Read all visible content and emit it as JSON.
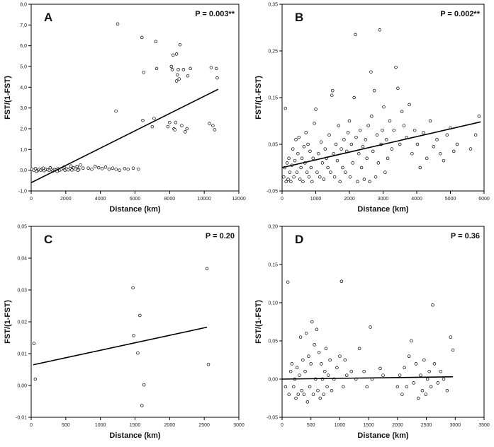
{
  "chart_data": [
    {
      "type": "scatter",
      "panel_letter": "A",
      "p_value": "P = 0.003**",
      "xlabel": "Distance (km)",
      "ylabel": "FST/(1-FST)",
      "xlim": [
        0,
        12000
      ],
      "ylim": [
        -1.0,
        8.0
      ],
      "xticks": [
        "0",
        "2000",
        "4000",
        "6000",
        "8000",
        "10000",
        "12000"
      ],
      "yticks": [
        "-1,0",
        "0,0",
        "1,0",
        "2,0",
        "3,0",
        "4,0",
        "5,0",
        "6,0",
        "7,0",
        "8,0"
      ],
      "regression": [
        [
          0,
          -0.6
        ],
        [
          10800,
          3.9
        ]
      ],
      "points": [
        [
          50,
          0.05
        ],
        [
          150,
          0.0
        ],
        [
          250,
          0.08
        ],
        [
          350,
          -0.03
        ],
        [
          450,
          0.05
        ],
        [
          550,
          0.0
        ],
        [
          650,
          0.07
        ],
        [
          750,
          -0.02
        ],
        [
          850,
          0.04
        ],
        [
          950,
          0.02
        ],
        [
          1050,
          0.0
        ],
        [
          1150,
          0.06
        ],
        [
          1250,
          -0.04
        ],
        [
          1350,
          0.03
        ],
        [
          1450,
          0.01
        ],
        [
          1550,
          0.07
        ],
        [
          1650,
          0.0
        ],
        [
          1750,
          0.05
        ],
        [
          1850,
          0.1
        ],
        [
          1950,
          0.0
        ],
        [
          2050,
          0.06
        ],
        [
          2150,
          0.02
        ],
        [
          2250,
          0.09
        ],
        [
          2350,
          0.01
        ],
        [
          2450,
          0.12
        ],
        [
          2550,
          0.05
        ],
        [
          2650,
          0.18
        ],
        [
          2750,
          0.04
        ],
        [
          2850,
          0.25
        ],
        [
          3000,
          0.1
        ],
        [
          300,
          -0.05
        ],
        [
          700,
          0.1
        ],
        [
          1100,
          0.12
        ],
        [
          1500,
          -0.06
        ],
        [
          1900,
          0.15
        ],
        [
          2300,
          0.2
        ],
        [
          2700,
          0.0
        ],
        [
          3300,
          0.1
        ],
        [
          3500,
          0.05
        ],
        [
          3700,
          0.18
        ],
        [
          3900,
          0.12
        ],
        [
          4100,
          0.08
        ],
        [
          4300,
          0.15
        ],
        [
          4500,
          0.05
        ],
        [
          4700,
          0.1
        ],
        [
          4900,
          0.05
        ],
        [
          5100,
          0.0
        ],
        [
          5400,
          0.08
        ],
        [
          5600,
          0.05
        ],
        [
          5900,
          0.1
        ],
        [
          6200,
          0.05
        ],
        [
          4900,
          2.85
        ],
        [
          5000,
          7.05
        ],
        [
          6400,
          6.4
        ],
        [
          6500,
          4.72
        ],
        [
          6450,
          2.4
        ],
        [
          7000,
          2.1
        ],
        [
          7100,
          2.5
        ],
        [
          7200,
          6.2
        ],
        [
          7250,
          4.9
        ],
        [
          7900,
          2.1
        ],
        [
          8000,
          2.3
        ],
        [
          8100,
          5.0
        ],
        [
          8150,
          4.85
        ],
        [
          8200,
          5.55
        ],
        [
          8250,
          2.0
        ],
        [
          8300,
          1.95
        ],
        [
          8350,
          2.3
        ],
        [
          8400,
          4.3
        ],
        [
          8400,
          5.6
        ],
        [
          8450,
          4.6
        ],
        [
          8500,
          4.85
        ],
        [
          8550,
          4.4
        ],
        [
          8600,
          6.05
        ],
        [
          8700,
          2.15
        ],
        [
          8800,
          4.85
        ],
        [
          8900,
          1.85
        ],
        [
          9000,
          2.0
        ],
        [
          9050,
          4.55
        ],
        [
          9200,
          4.9
        ],
        [
          10300,
          2.25
        ],
        [
          10400,
          4.95
        ],
        [
          10500,
          2.15
        ],
        [
          10600,
          1.95
        ],
        [
          10700,
          4.9
        ],
        [
          10750,
          4.45
        ]
      ]
    },
    {
      "type": "scatter",
      "panel_letter": "B",
      "p_value": "P = 0.002**",
      "xlabel": "Distance (km)",
      "ylabel": "FST/(1-FST)",
      "xlim": [
        0,
        6000
      ],
      "ylim": [
        -0.05,
        0.35
      ],
      "xticks": [
        "0",
        "1000",
        "2000",
        "3000",
        "4000",
        "5000",
        "6000"
      ],
      "yticks": [
        "-0,05",
        "0,05",
        "0,15",
        "0,25",
        "0,35"
      ],
      "regression": [
        [
          0,
          0.0
        ],
        [
          5900,
          0.098
        ]
      ],
      "points": [
        [
          50,
          -0.02
        ],
        [
          80,
          0.0
        ],
        [
          100,
          0.127
        ],
        [
          120,
          -0.03
        ],
        [
          150,
          0.01
        ],
        [
          180,
          -0.025
        ],
        [
          200,
          0.02
        ],
        [
          230,
          -0.01
        ],
        [
          260,
          -0.03
        ],
        [
          290,
          0.005
        ],
        [
          320,
          0.04
        ],
        [
          350,
          -0.02
        ],
        [
          380,
          0.015
        ],
        [
          410,
          0.06
        ],
        [
          440,
          -0.01
        ],
        [
          470,
          0.03
        ],
        [
          500,
          0.065
        ],
        [
          530,
          -0.025
        ],
        [
          560,
          0.0
        ],
        [
          590,
          0.02
        ],
        [
          620,
          -0.03
        ],
        [
          650,
          0.045
        ],
        [
          680,
          0.01
        ],
        [
          710,
          0.075
        ],
        [
          740,
          -0.01
        ],
        [
          770,
          0.05
        ],
        [
          800,
          -0.02
        ],
        [
          830,
          0.035
        ],
        [
          860,
          0.0
        ],
        [
          890,
          -0.03
        ],
        [
          920,
          0.02
        ],
        [
          960,
          0.095
        ],
        [
          1000,
          0.125
        ],
        [
          1040,
          -0.01
        ],
        [
          1080,
          0.03
        ],
        [
          1120,
          -0.02
        ],
        [
          1160,
          0.055
        ],
        [
          1200,
          0.01
        ],
        [
          1240,
          -0.025
        ],
        [
          1280,
          0.04
        ],
        [
          1320,
          0.02
        ],
        [
          1360,
          0.0
        ],
        [
          1400,
          0.07
        ],
        [
          1440,
          -0.01
        ],
        [
          1480,
          0.155
        ],
        [
          1500,
          0.165
        ],
        [
          1530,
          0.03
        ],
        [
          1560,
          -0.02
        ],
        [
          1600,
          0.05
        ],
        [
          1640,
          0.015
        ],
        [
          1680,
          0.09
        ],
        [
          1720,
          -0.03
        ],
        [
          1760,
          0.04
        ],
        [
          1800,
          0.0
        ],
        [
          1840,
          0.06
        ],
        [
          1880,
          -0.01
        ],
        [
          1920,
          0.035
        ],
        [
          1960,
          0.075
        ],
        [
          2000,
          0.1
        ],
        [
          2020,
          -0.02
        ],
        [
          2060,
          0.05
        ],
        [
          2100,
          0.01
        ],
        [
          2140,
          0.15
        ],
        [
          2180,
          0.285
        ],
        [
          2200,
          0.065
        ],
        [
          2240,
          -0.03
        ],
        [
          2280,
          0.03
        ],
        [
          2320,
          0.08
        ],
        [
          2360,
          0.0
        ],
        [
          2400,
          0.045
        ],
        [
          2440,
          -0.025
        ],
        [
          2480,
          0.06
        ],
        [
          2520,
          0.02
        ],
        [
          2560,
          0.09
        ],
        [
          2600,
          -0.03
        ],
        [
          2640,
          0.205
        ],
        [
          2660,
          0.11
        ],
        [
          2700,
          0.035
        ],
        [
          2740,
          0.165
        ],
        [
          2780,
          -0.02
        ],
        [
          2820,
          0.07
        ],
        [
          2860,
          0.01
        ],
        [
          2900,
          0.295
        ],
        [
          2940,
          0.05
        ],
        [
          2980,
          0.08
        ],
        [
          3020,
          0.13
        ],
        [
          3060,
          -0.01
        ],
        [
          3100,
          0.06
        ],
        [
          3140,
          0.02
        ],
        [
          3200,
          0.1
        ],
        [
          3260,
          0.04
        ],
        [
          3320,
          0.08
        ],
        [
          3380,
          0.215
        ],
        [
          3440,
          0.17
        ],
        [
          3500,
          0.05
        ],
        [
          3560,
          0.12
        ],
        [
          3620,
          0.09
        ],
        [
          3700,
          0.065
        ],
        [
          3780,
          0.135
        ],
        [
          3860,
          0.03
        ],
        [
          3940,
          0.08
        ],
        [
          4020,
          0.05
        ],
        [
          4100,
          0.0
        ],
        [
          4200,
          0.075
        ],
        [
          4300,
          0.02
        ],
        [
          4400,
          0.1
        ],
        [
          4500,
          0.045
        ],
        [
          4600,
          0.06
        ],
        [
          4700,
          0.03
        ],
        [
          4800,
          0.015
        ],
        [
          4900,
          0.07
        ],
        [
          5000,
          0.085
        ],
        [
          5100,
          0.035
        ],
        [
          5200,
          0.05
        ],
        [
          5600,
          0.04
        ],
        [
          5850,
          0.11
        ],
        [
          5750,
          0.07
        ]
      ]
    },
    {
      "type": "scatter",
      "panel_letter": "C",
      "p_value": "P = 0.20",
      "xlabel": "Distance (km)",
      "ylabel": "FST/(1-FST)",
      "xlim": [
        0,
        3000
      ],
      "ylim": [
        -0.01,
        0.05
      ],
      "xticks": [
        "0",
        "500",
        "1000",
        "1500",
        "2000",
        "2500",
        "3000"
      ],
      "yticks": [
        "-0,01",
        "0,00",
        "0,01",
        "0,02",
        "0,03",
        "0,04",
        "0,05"
      ],
      "regression": [
        [
          30,
          0.0065
        ],
        [
          2540,
          0.0183
        ]
      ],
      "points": [
        [
          40,
          0.0132
        ],
        [
          60,
          0.002
        ],
        [
          1470,
          0.0307
        ],
        [
          1480,
          0.0157
        ],
        [
          1540,
          0.0102
        ],
        [
          1570,
          0.022
        ],
        [
          1600,
          -0.0063
        ],
        [
          1630,
          0.0002
        ],
        [
          2540,
          0.0367
        ],
        [
          2560,
          0.0066
        ]
      ]
    },
    {
      "type": "scatter",
      "panel_letter": "D",
      "p_value": "P = 0.36",
      "xlabel": "Distance (km)",
      "ylabel": "FST/(1-FST)",
      "xlim": [
        0,
        3500
      ],
      "ylim": [
        -0.05,
        0.2
      ],
      "xticks": [
        "0",
        "500",
        "1000",
        "1500",
        "2000",
        "2500",
        "3000",
        "3500"
      ],
      "yticks": [
        "-0,05",
        "0,00",
        "0,05",
        "0,10",
        "0,15",
        "0,20"
      ],
      "regression": [
        [
          0,
          0.0
        ],
        [
          2960,
          0.003
        ]
      ],
      "points": [
        [
          60,
          -0.01
        ],
        [
          100,
          0.127
        ],
        [
          120,
          -0.02
        ],
        [
          150,
          0.01
        ],
        [
          170,
          0.02
        ],
        [
          200,
          -0.01
        ],
        [
          220,
          0.0
        ],
        [
          240,
          -0.025
        ],
        [
          260,
          0.015
        ],
        [
          280,
          -0.02
        ],
        [
          300,
          0.005
        ],
        [
          320,
          0.055
        ],
        [
          340,
          -0.015
        ],
        [
          360,
          0.025
        ],
        [
          380,
          -0.02
        ],
        [
          400,
          0.01
        ],
        [
          420,
          0.06
        ],
        [
          440,
          -0.03
        ],
        [
          460,
          0.03
        ],
        [
          480,
          -0.01
        ],
        [
          500,
          0.02
        ],
        [
          520,
          0.075
        ],
        [
          540,
          -0.02
        ],
        [
          560,
          0.045
        ],
        [
          580,
          0.0
        ],
        [
          600,
          0.065
        ],
        [
          620,
          -0.015
        ],
        [
          640,
          0.035
        ],
        [
          660,
          -0.025
        ],
        [
          680,
          0.02
        ],
        [
          700,
          0.0
        ],
        [
          720,
          -0.02
        ],
        [
          740,
          0.01
        ],
        [
          760,
          0.04
        ],
        [
          780,
          -0.01
        ],
        [
          800,
          0.005
        ],
        [
          830,
          0.025
        ],
        [
          860,
          -0.015
        ],
        [
          900,
          0.0
        ],
        [
          950,
          0.015
        ],
        [
          1000,
          0.03
        ],
        [
          1030,
          0.128
        ],
        [
          1060,
          -0.01
        ],
        [
          1090,
          0.025
        ],
        [
          1120,
          0.005
        ],
        [
          1200,
          0.01
        ],
        [
          1280,
          0.0
        ],
        [
          1340,
          0.04
        ],
        [
          1420,
          0.01
        ],
        [
          1470,
          -0.01
        ],
        [
          1530,
          0.068
        ],
        [
          1560,
          0.0
        ],
        [
          1700,
          0.014
        ],
        [
          1750,
          0.005
        ],
        [
          2000,
          -0.01
        ],
        [
          2040,
          0.005
        ],
        [
          2080,
          -0.02
        ],
        [
          2120,
          0.015
        ],
        [
          2160,
          -0.01
        ],
        [
          2200,
          0.03
        ],
        [
          2240,
          0.05
        ],
        [
          2280,
          -0.005
        ],
        [
          2320,
          0.02
        ],
        [
          2360,
          -0.025
        ],
        [
          2400,
          0.005
        ],
        [
          2430,
          -0.015
        ],
        [
          2460,
          0.025
        ],
        [
          2490,
          -0.02
        ],
        [
          2520,
          0.0
        ],
        [
          2550,
          0.01
        ],
        [
          2580,
          -0.01
        ],
        [
          2610,
          0.097
        ],
        [
          2640,
          0.02
        ],
        [
          2700,
          -0.005
        ],
        [
          2750,
          0.01
        ],
        [
          2800,
          0.0
        ],
        [
          2860,
          -0.015
        ],
        [
          2920,
          0.055
        ],
        [
          2960,
          0.038
        ]
      ]
    }
  ]
}
